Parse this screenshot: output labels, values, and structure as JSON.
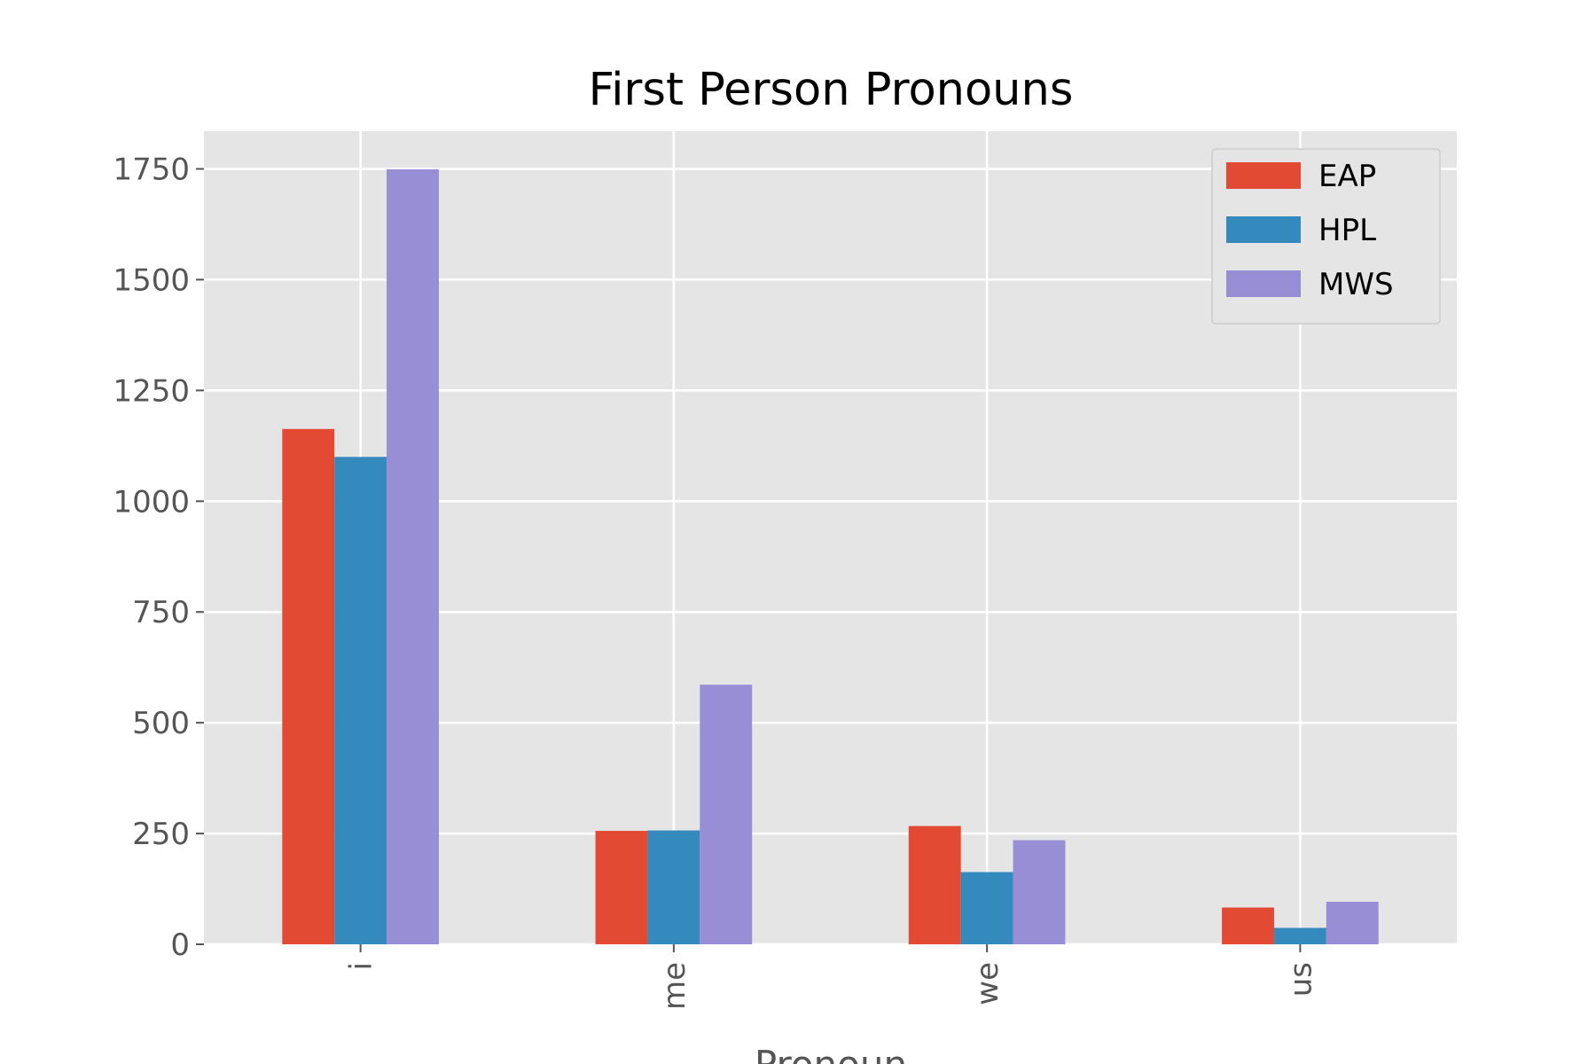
{
  "chart_data": {
    "type": "bar",
    "title": "First Person Pronouns",
    "xlabel": "Pronoun",
    "ylabel": "",
    "categories": [
      "i",
      "me",
      "we",
      "us"
    ],
    "series": [
      {
        "name": "EAP",
        "color": "#E24A33",
        "values": [
          1163,
          256,
          267,
          83
        ]
      },
      {
        "name": "HPL",
        "color": "#348ABD",
        "values": [
          1100,
          257,
          163,
          37
        ]
      },
      {
        "name": "MWS",
        "color": "#988ED5",
        "values": [
          1749,
          586,
          235,
          96
        ]
      }
    ],
    "ylim": [
      0,
      1835
    ],
    "yticks": [
      "0",
      "250",
      "500",
      "750",
      "1000",
      "1250",
      "1500",
      "1750"
    ],
    "grid": true,
    "legend_position": "top-right",
    "colors": {
      "plot_background": "#E5E5E5",
      "grid": "#FFFFFF",
      "tick_text": "#555555"
    }
  }
}
